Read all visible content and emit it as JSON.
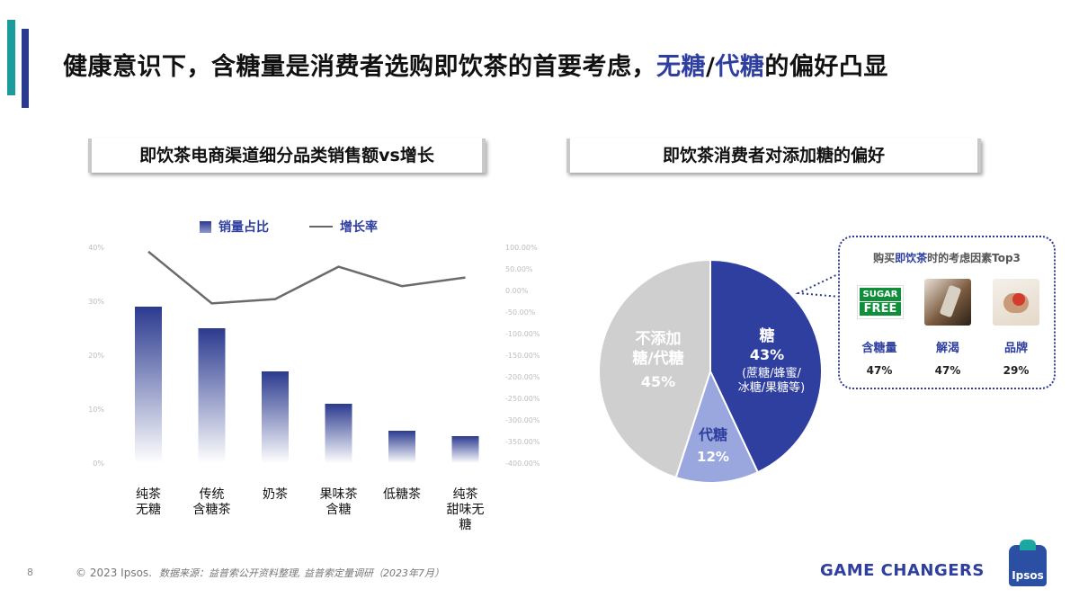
{
  "page": {
    "title_parts": [
      "健康意识下，含糖量是消费者选购即饮茶的首要考虑，",
      "无糖",
      "/",
      "代糖",
      "的偏好凸显"
    ],
    "left_subtitle": "即饮茶电商渠道细分品类销售额vs增长",
    "right_subtitle": "即饮茶消费者对添加糖的偏好"
  },
  "colors": {
    "navy": "#2b3a8f",
    "teal": "#1a9c9c",
    "pie_sugar": "#2e3f9f",
    "pie_substitute": "#9aa6de",
    "pie_none": "#cfcfcf"
  },
  "chart_data": [
    {
      "type": "bar",
      "legend": {
        "bar_label": "销量占比",
        "line_label": "增长率"
      },
      "categories": [
        "纯茶\n无糖",
        "传统\n含糖茶",
        "奶茶",
        "果味茶\n含糖",
        "低糖茶",
        "纯茶\n甜味无\n糖"
      ],
      "series": [
        {
          "name": "销量占比",
          "type": "bar",
          "axis": "left",
          "values": [
            29,
            25,
            17,
            11,
            6,
            5
          ]
        },
        {
          "name": "增长率",
          "type": "line",
          "axis": "right",
          "values": [
            90,
            -30,
            -20,
            55,
            10,
            30
          ]
        }
      ],
      "left_axis": {
        "ticks": [
          "0%",
          "10%",
          "20%",
          "30%",
          "40%"
        ],
        "ylim": [
          0,
          40
        ]
      },
      "right_axis": {
        "ticks": [
          "100.00%",
          "50.00%",
          "0.00%",
          "-50.00%",
          "-100.00%",
          "-150.00%",
          "-200.00%",
          "-250.00%",
          "-300.00%",
          "-350.00%",
          "-400.00%"
        ],
        "ylim": [
          -400,
          100
        ]
      }
    },
    {
      "type": "pie",
      "slices": [
        {
          "label": "糖",
          "value": 43,
          "pct_text": "43%",
          "note": "(蔗糖/蜂蜜/\n冰糖/果糖等)",
          "color": "#2e3f9f"
        },
        {
          "label": "代糖",
          "value": 12,
          "pct_text": "12%",
          "color": "#9aa6de"
        },
        {
          "label": "不添加\n糖/代糖",
          "value": 45,
          "pct_text": "45%",
          "color": "#cfcfcf"
        }
      ]
    }
  ],
  "bubble": {
    "title_pre": "购买",
    "title_hl": "即饮茶",
    "title_post": "时的考虑因素Top3",
    "factors": [
      {
        "label": "含糖量",
        "pct": "47%",
        "icon": "sugar-free-icon",
        "icon_text_top": "SUGAR",
        "icon_text_bottom": "FREE"
      },
      {
        "label": "解渴",
        "pct": "47%",
        "icon": "drinking-photo-icon"
      },
      {
        "label": "品牌",
        "pct": "29%",
        "icon": "brand-logo-photo-icon"
      }
    ]
  },
  "footer": {
    "page_number": "8",
    "copyright": "© 2023 Ipsos.",
    "source": "数据来源：益普索公开资料整理, 益普索定量调研（2023年7月）",
    "tagline": "GAME CHANGERS",
    "logo_text": "Ipsos"
  }
}
